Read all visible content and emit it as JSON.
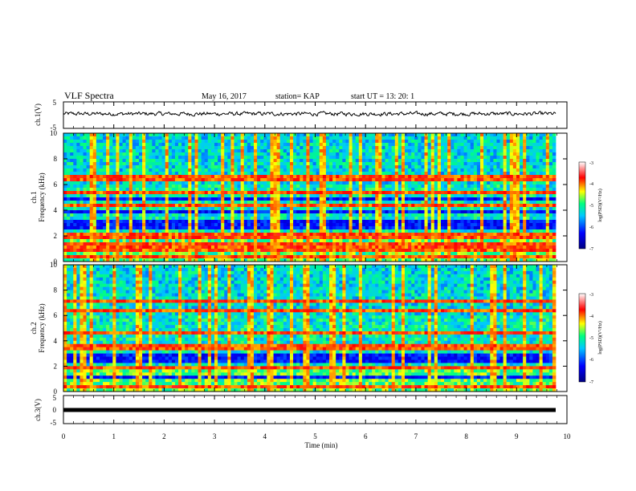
{
  "header": {
    "title": "VLF Spectra",
    "date": "May 16, 2017",
    "station": "station= KAP",
    "start": "start  UT  =   13: 20: 1"
  },
  "colors": {
    "waveform": "#000000",
    "colormap": [
      "#000080",
      "#0000ff",
      "#00c8ff",
      "#00ff80",
      "#ffff00",
      "#ff0000",
      "#ffffff"
    ]
  },
  "chart_data": [
    {
      "type": "line",
      "panel": "ch1-waveform",
      "ylabel": "ch.1(V)",
      "ylim": [
        -5,
        5
      ],
      "yticks": [
        "5",
        "-5"
      ],
      "series": [
        {
          "description_values": "noisy waveform oscillating around ~0.5 V with amplitude about ±1.5 V",
          "mean": 0.5,
          "amplitude": 1.5
        }
      ]
    },
    {
      "type": "heatmap",
      "panel": "ch1-spectrogram",
      "ylabel": "ch.1\nFrequency (kHz)",
      "ylim": [
        0,
        10
      ],
      "yticks": [
        "0",
        "2",
        "4",
        "6",
        "8",
        "10"
      ],
      "xlim": [
        0,
        10
      ],
      "colorbar": {
        "label": "log(PSD)(V²/Hz)",
        "range": [
          -7,
          -3
        ],
        "ticks": [
          "-3",
          "-4",
          "-5",
          "-6",
          "-7"
        ]
      },
      "dark_bands_khz": [
        [
          2.6,
          3.3
        ],
        [
          3.7,
          4.0
        ],
        [
          4.7,
          5.0
        ]
      ],
      "bright_lines_khz": [
        0.4,
        1.0,
        1.3,
        1.8,
        2.2,
        4.3,
        5.4,
        6.5
      ]
    },
    {
      "type": "heatmap",
      "panel": "ch2-spectrogram",
      "ylabel": "ch.2\nFrequency (kHz)",
      "ylim": [
        0,
        10
      ],
      "yticks": [
        "0",
        "2",
        "4",
        "6",
        "8",
        "10"
      ],
      "xlim": [
        0,
        10
      ],
      "colorbar": {
        "label": "log(PSD)(V²/Hz)",
        "range": [
          -7,
          -3
        ],
        "ticks": [
          "-3",
          "-4",
          "-5",
          "-6",
          "-7"
        ]
      },
      "dark_bands_khz": [
        [
          2.2,
          3.0
        ],
        [
          0.9,
          1.3
        ]
      ],
      "bright_lines_khz": [
        0.3,
        1.8,
        3.4,
        3.6,
        4.7,
        6.3,
        7.2
      ]
    },
    {
      "type": "line",
      "panel": "ch3-waveform",
      "ylabel": "ch.3(V)",
      "ylim": [
        -5,
        5
      ],
      "yticks": [
        "5",
        "0",
        "-5"
      ],
      "series": [
        {
          "constant_value": 0
        }
      ]
    }
  ],
  "xaxis": {
    "label": "Time  (min)",
    "range": [
      0,
      10
    ],
    "ticks": [
      "0",
      "1",
      "2",
      "3",
      "4",
      "5",
      "6",
      "7",
      "8",
      "9",
      "10"
    ]
  }
}
